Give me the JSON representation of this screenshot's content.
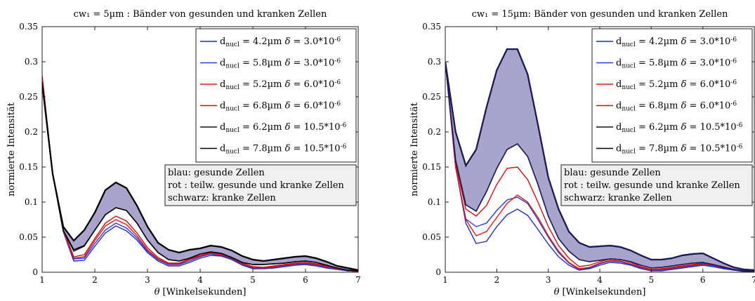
{
  "chart_data": [
    {
      "type": "line",
      "title": "cw₁ = 5µm : Bänder von gesunden und kranken Zellen",
      "xlabel": "θ [Winkelsekunden]",
      "ylabel": "normierte Intensität",
      "xlim": [
        1,
        7
      ],
      "ylim": [
        0,
        0.35
      ],
      "xticks": [
        "1",
        "2",
        "3",
        "4",
        "5",
        "6",
        "7"
      ],
      "yticks": [
        "0",
        "0.05",
        "0.1",
        "0.15",
        "0.2",
        "0.25",
        "0.3",
        "0.35"
      ],
      "grid": false,
      "legend_position": "top-right",
      "annotation": [
        "blau: gesunde Zellen",
        "rot  : teilw. gesunde und kranke Zellen",
        "schwarz: kranke Zellen"
      ],
      "band": {
        "color": "#a9a4cc",
        "x": [
          1,
          1.2,
          1.4,
          1.6,
          1.8,
          2,
          2.2,
          2.4,
          2.6,
          2.8,
          3,
          3.2,
          3.4,
          3.6,
          3.8,
          4,
          4.2,
          4.4,
          4.6,
          4.8,
          5,
          5.2,
          5.4,
          5.6,
          5.8,
          6,
          6.2,
          6.4,
          6.6,
          6.8,
          7
        ],
        "upper": [
          0.27,
          0.14,
          0.065,
          0.045,
          0.06,
          0.085,
          0.117,
          0.128,
          0.12,
          0.095,
          0.065,
          0.042,
          0.032,
          0.028,
          0.032,
          0.034,
          0.038,
          0.036,
          0.031,
          0.023,
          0.018,
          0.016,
          0.018,
          0.02,
          0.022,
          0.023,
          0.02,
          0.015,
          0.009,
          0.006,
          0.003
        ],
        "lower": [
          0.27,
          0.14,
          0.06,
          0.032,
          0.038,
          0.06,
          0.082,
          0.092,
          0.088,
          0.07,
          0.046,
          0.028,
          0.018,
          0.016,
          0.02,
          0.026,
          0.029,
          0.027,
          0.021,
          0.014,
          0.011,
          0.011,
          0.012,
          0.013,
          0.015,
          0.016,
          0.014,
          0.01,
          0.006,
          0.003,
          0.002
        ]
      },
      "series": [
        {
          "name": "d_nucl = 4.2µm  δ = 3.0*10^-6",
          "color": "#1f2db8",
          "values": [
            0.27,
            0.14,
            0.058,
            0.016,
            0.017,
            0.037,
            0.056,
            0.066,
            0.059,
            0.046,
            0.028,
            0.016,
            0.009,
            0.009,
            0.014,
            0.02,
            0.024,
            0.023,
            0.018,
            0.01,
            0.005,
            0.005,
            0.006,
            0.008,
            0.01,
            0.011,
            0.009,
            0.006,
            0.004,
            0.002,
            0.001
          ]
        },
        {
          "name": "d_nucl = 5.8µm  δ = 3.0*10^-6",
          "color": "#2a3ad4",
          "values": [
            0.27,
            0.14,
            0.059,
            0.019,
            0.02,
            0.041,
            0.06,
            0.07,
            0.063,
            0.049,
            0.03,
            0.018,
            0.011,
            0.011,
            0.016,
            0.022,
            0.026,
            0.024,
            0.019,
            0.011,
            0.006,
            0.006,
            0.007,
            0.009,
            0.011,
            0.012,
            0.01,
            0.007,
            0.004,
            0.002,
            0.001
          ]
        },
        {
          "name": "d_nucl = 5.2µm  δ = 6.0*10^-6",
          "color": "#e01818",
          "values": [
            0.28,
            0.14,
            0.06,
            0.02,
            0.022,
            0.045,
            0.066,
            0.075,
            0.068,
            0.052,
            0.032,
            0.019,
            0.012,
            0.012,
            0.018,
            0.023,
            0.027,
            0.025,
            0.02,
            0.012,
            0.007,
            0.006,
            0.008,
            0.01,
            0.012,
            0.013,
            0.011,
            0.008,
            0.005,
            0.003,
            0.001
          ]
        },
        {
          "name": "d_nucl = 6.8µm  δ = 6.0*10^-6",
          "color": "#c81010",
          "values": [
            0.28,
            0.14,
            0.061,
            0.022,
            0.025,
            0.048,
            0.07,
            0.08,
            0.073,
            0.056,
            0.035,
            0.021,
            0.013,
            0.013,
            0.019,
            0.024,
            0.028,
            0.026,
            0.021,
            0.013,
            0.008,
            0.007,
            0.009,
            0.011,
            0.013,
            0.014,
            0.012,
            0.009,
            0.005,
            0.003,
            0.002
          ]
        },
        {
          "name": "d_nucl = 6.2µm  δ = 10.5*10^-6",
          "color": "#111111",
          "values": [
            0.27,
            0.14,
            0.06,
            0.03,
            0.037,
            0.06,
            0.082,
            0.092,
            0.088,
            0.07,
            0.046,
            0.028,
            0.018,
            0.016,
            0.02,
            0.026,
            0.029,
            0.027,
            0.021,
            0.014,
            0.011,
            0.011,
            0.012,
            0.013,
            0.015,
            0.016,
            0.014,
            0.01,
            0.006,
            0.003,
            0.002
          ]
        },
        {
          "name": "d_nucl = 7.8µm  δ = 10.5*10^-6",
          "color": "#000000",
          "values": [
            0.27,
            0.14,
            0.065,
            0.045,
            0.06,
            0.085,
            0.117,
            0.128,
            0.12,
            0.095,
            0.065,
            0.042,
            0.032,
            0.028,
            0.032,
            0.034,
            0.038,
            0.036,
            0.031,
            0.023,
            0.018,
            0.016,
            0.018,
            0.02,
            0.022,
            0.023,
            0.02,
            0.015,
            0.009,
            0.006,
            0.003
          ]
        }
      ]
    },
    {
      "type": "line",
      "title": "cw₁ = 15µm: Bänder von gesunden und kranken Zellen",
      "xlabel": "θ [Winkelsekunden]",
      "ylabel": "normierte Intensität",
      "xlim": [
        1,
        7
      ],
      "ylim": [
        0,
        0.35
      ],
      "xticks": [
        "1",
        "2",
        "3",
        "4",
        "5",
        "6",
        "7"
      ],
      "yticks": [
        "0",
        "0.05",
        "0.1",
        "0.15",
        "0.2",
        "0.25",
        "0.3",
        "0.35"
      ],
      "grid": false,
      "legend_position": "top-right",
      "annotation": [
        "blau: gesunde Zellen",
        "rot  : teilw. gesunde und kranke Zellen",
        "schwarz: kranke Zellen"
      ],
      "band": {
        "color": "#a9a4cc",
        "x": [
          1,
          1.2,
          1.4,
          1.6,
          1.8,
          2,
          2.2,
          2.4,
          2.6,
          2.8,
          3,
          3.2,
          3.4,
          3.6,
          3.8,
          4,
          4.2,
          4.4,
          4.6,
          4.8,
          5,
          5.2,
          5.4,
          5.6,
          5.8,
          6,
          6.2,
          6.4,
          6.6,
          6.8,
          7
        ],
        "upper": [
          0.3,
          0.2,
          0.152,
          0.175,
          0.235,
          0.288,
          0.318,
          0.318,
          0.282,
          0.21,
          0.135,
          0.09,
          0.058,
          0.042,
          0.036,
          0.037,
          0.038,
          0.036,
          0.031,
          0.024,
          0.018,
          0.018,
          0.02,
          0.024,
          0.026,
          0.027,
          0.02,
          0.013,
          0.007,
          0.004,
          0.003
        ],
        "lower": [
          0.3,
          0.16,
          0.096,
          0.087,
          0.115,
          0.148,
          0.175,
          0.183,
          0.165,
          0.125,
          0.08,
          0.048,
          0.03,
          0.018,
          0.015,
          0.017,
          0.019,
          0.018,
          0.015,
          0.01,
          0.006,
          0.007,
          0.009,
          0.011,
          0.013,
          0.014,
          0.011,
          0.007,
          0.004,
          0.002,
          0.001
        ]
      },
      "series": [
        {
          "name": "d_nucl = 4.2µm  δ = 3.0*10^-6",
          "color": "#1f2db8",
          "values": [
            0.3,
            0.15,
            0.07,
            0.041,
            0.044,
            0.065,
            0.082,
            0.09,
            0.081,
            0.061,
            0.04,
            0.022,
            0.01,
            0.003,
            0.005,
            0.01,
            0.014,
            0.013,
            0.01,
            0.005,
            0.002,
            0.002,
            0.004,
            0.006,
            0.008,
            0.01,
            0.008,
            0.005,
            0.003,
            0.001,
            0.001
          ]
        },
        {
          "name": "d_nucl = 5.8µm  δ = 3.0*10^-6",
          "color": "#2a3ad4",
          "values": [
            0.3,
            0.15,
            0.076,
            0.065,
            0.07,
            0.088,
            0.103,
            0.107,
            0.098,
            0.075,
            0.05,
            0.028,
            0.013,
            0.004,
            0.006,
            0.012,
            0.016,
            0.015,
            0.011,
            0.006,
            0.003,
            0.003,
            0.005,
            0.007,
            0.009,
            0.011,
            0.009,
            0.006,
            0.003,
            0.002,
            0.001
          ]
        },
        {
          "name": "d_nucl = 5.2µm  δ = 6.0*10^-6",
          "color": "#e01818",
          "values": [
            0.3,
            0.15,
            0.075,
            0.052,
            0.058,
            0.078,
            0.098,
            0.11,
            0.1,
            0.078,
            0.052,
            0.03,
            0.014,
            0.005,
            0.007,
            0.013,
            0.017,
            0.016,
            0.012,
            0.007,
            0.003,
            0.004,
            0.006,
            0.008,
            0.01,
            0.012,
            0.01,
            0.007,
            0.004,
            0.002,
            0.001
          ]
        },
        {
          "name": "d_nucl = 6.8µm  δ = 6.0*10^-6",
          "color": "#c81010",
          "values": [
            0.3,
            0.155,
            0.09,
            0.08,
            0.095,
            0.125,
            0.148,
            0.15,
            0.132,
            0.1,
            0.065,
            0.038,
            0.02,
            0.008,
            0.01,
            0.015,
            0.019,
            0.018,
            0.014,
            0.008,
            0.004,
            0.005,
            0.007,
            0.009,
            0.011,
            0.013,
            0.011,
            0.008,
            0.004,
            0.002,
            0.001
          ]
        },
        {
          "name": "d_nucl = 6.2µm  δ = 10.5*10^-6",
          "color": "#111111",
          "values": [
            0.3,
            0.16,
            0.096,
            0.087,
            0.115,
            0.148,
            0.175,
            0.183,
            0.165,
            0.125,
            0.08,
            0.048,
            0.03,
            0.018,
            0.015,
            0.017,
            0.019,
            0.018,
            0.015,
            0.01,
            0.006,
            0.007,
            0.009,
            0.011,
            0.013,
            0.014,
            0.011,
            0.007,
            0.004,
            0.002,
            0.001
          ]
        },
        {
          "name": "d_nucl = 7.8µm  δ = 10.5*10^-6",
          "color": "#000000",
          "values": [
            0.3,
            0.2,
            0.152,
            0.175,
            0.235,
            0.288,
            0.318,
            0.318,
            0.282,
            0.21,
            0.135,
            0.09,
            0.058,
            0.042,
            0.036,
            0.037,
            0.038,
            0.036,
            0.031,
            0.024,
            0.018,
            0.018,
            0.02,
            0.024,
            0.026,
            0.027,
            0.02,
            0.013,
            0.007,
            0.004,
            0.003
          ]
        }
      ]
    }
  ]
}
